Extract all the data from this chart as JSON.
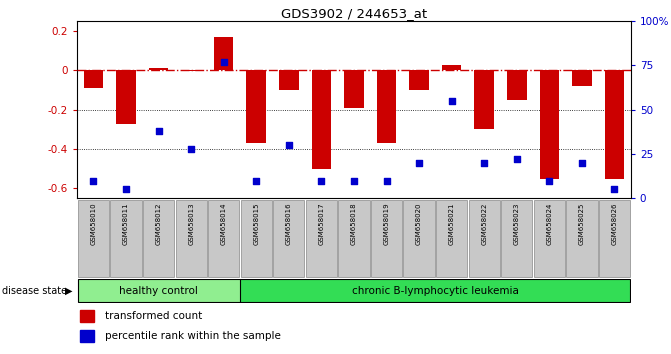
{
  "title": "GDS3902 / 244653_at",
  "samples": [
    "GSM658010",
    "GSM658011",
    "GSM658012",
    "GSM658013",
    "GSM658014",
    "GSM658015",
    "GSM658016",
    "GSM658017",
    "GSM658018",
    "GSM658019",
    "GSM658020",
    "GSM658021",
    "GSM658022",
    "GSM658023",
    "GSM658024",
    "GSM658025",
    "GSM658026"
  ],
  "bar_values": [
    -0.09,
    -0.27,
    0.01,
    -0.005,
    0.17,
    -0.37,
    -0.1,
    -0.5,
    -0.19,
    -0.37,
    -0.1,
    0.03,
    -0.3,
    -0.15,
    -0.55,
    -0.08,
    -0.55
  ],
  "percentile_values": [
    10,
    5,
    38,
    28,
    77,
    10,
    30,
    10,
    10,
    10,
    20,
    55,
    20,
    22,
    10,
    20,
    5
  ],
  "healthy_count": 5,
  "healthy_label": "healthy control",
  "disease_label": "chronic B-lymphocytic leukemia",
  "bar_color": "#CC0000",
  "dot_color": "#0000CC",
  "healthy_bg": "#90EE90",
  "disease_bg": "#33DD55",
  "label_bg": "#C8C8C8",
  "ylim_left": [
    -0.65,
    0.25
  ],
  "ylim_right": [
    0,
    100
  ],
  "zero_line_color": "#CC0000",
  "legend_red": "transformed count",
  "legend_blue": "percentile rank within the sample"
}
